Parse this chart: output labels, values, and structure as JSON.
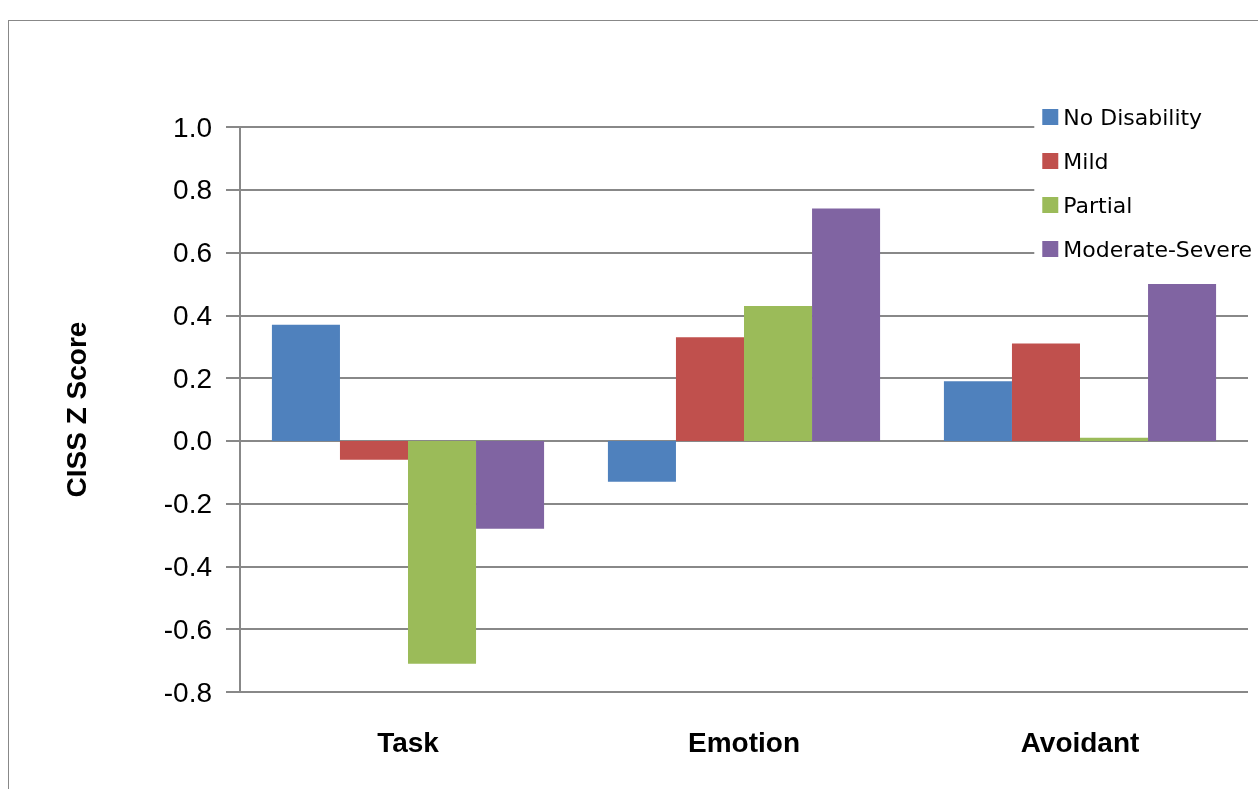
{
  "chart_data": {
    "type": "bar",
    "ylabel": "CISS Z Score",
    "categories": [
      "Task",
      "Emotion",
      "Avoidant"
    ],
    "series": [
      {
        "name": "No Disability",
        "color": "#4f81bd",
        "values": [
          0.37,
          -0.13,
          0.19
        ]
      },
      {
        "name": "Mild",
        "color": "#c0504d",
        "values": [
          -0.06,
          0.33,
          0.31
        ]
      },
      {
        "name": "Partial",
        "color": "#9bbb59",
        "values": [
          -0.71,
          0.43,
          0.01
        ]
      },
      {
        "name": "Moderate-Severe",
        "color": "#8064a2",
        "values": [
          -0.28,
          0.74,
          0.5
        ]
      }
    ],
    "ylim": [
      -0.8,
      1.0
    ],
    "yticks": [
      -0.8,
      -0.6,
      -0.4,
      -0.2,
      {
        "value": 0,
        "label": "0.0"
      },
      0.2,
      0.4,
      0.6,
      0.8,
      {
        "value": 1,
        "label": "1.0"
      }
    ],
    "grid": "y",
    "legend": "top right"
  }
}
